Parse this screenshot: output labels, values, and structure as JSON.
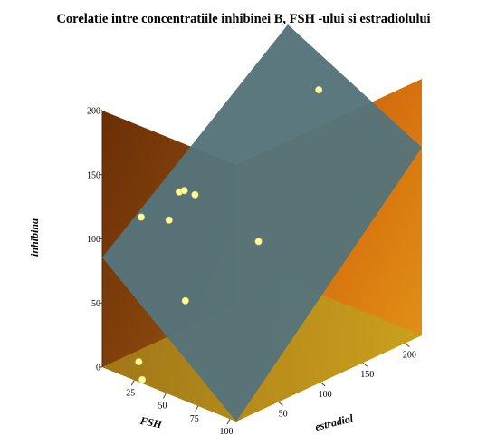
{
  "chart_data": {
    "type": "scatter",
    "title": "Corelatie intre concentratiile inhibinei B, FSH -ului si estradiolului",
    "xlabel": "FSH",
    "ylabel": "estradiol",
    "zlabel": "inhibina",
    "x_ticks": [
      "25",
      "50",
      "75",
      "100"
    ],
    "y_ticks": [
      "50",
      "100",
      "150",
      "200"
    ],
    "z_ticks": [
      "0",
      "50",
      "100",
      "150",
      "200"
    ],
    "xlim": [
      0,
      105
    ],
    "ylim": [
      0,
      220
    ],
    "zlim": [
      0,
      200
    ],
    "grid": false,
    "surface": "fitted regression plane",
    "points": [
      {
        "x": 22,
        "y": 10,
        "z": 10
      },
      {
        "x": 28,
        "y": 5,
        "z": 0
      },
      {
        "x": 14,
        "y": 25,
        "z": 115
      },
      {
        "x": 18,
        "y": 52,
        "z": 106
      },
      {
        "x": 20,
        "y": 61,
        "z": 126
      },
      {
        "x": 22,
        "y": 64,
        "z": 127
      },
      {
        "x": 29,
        "y": 66,
        "z": 126
      },
      {
        "x": 42,
        "y": 35,
        "z": 58
      },
      {
        "x": 55,
        "y": 102,
        "z": 89
      },
      {
        "x": 58,
        "y": 169,
        "z": 188
      }
    ],
    "colors": {
      "back_wall": "#7a3a08",
      "right_wall": "#d35f0a",
      "floor": "#b88a1a",
      "plane": "#56747a",
      "point": "#ffffa0"
    }
  }
}
